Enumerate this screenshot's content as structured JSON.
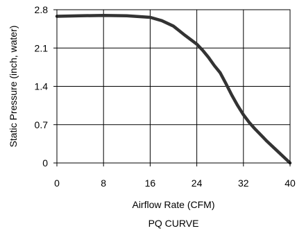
{
  "chart_data": {
    "type": "line",
    "title": "PQ CURVE",
    "xlabel": "Airflow Rate (CFM)",
    "ylabel": "Static Pressure (inch, water)",
    "xlim": [
      0,
      40
    ],
    "ylim": [
      0,
      2.8
    ],
    "x_ticks": [
      "0",
      "8",
      "16",
      "24",
      "32",
      "40"
    ],
    "y_ticks": [
      "0",
      "0.7",
      "1.4",
      "2.1",
      "2.8"
    ],
    "grid": true,
    "legend": "none",
    "series": [
      {
        "color": "#333333",
        "points": [
          [
            0,
            2.68
          ],
          [
            4,
            2.69
          ],
          [
            8,
            2.695
          ],
          [
            12,
            2.69
          ],
          [
            16,
            2.66
          ],
          [
            18,
            2.6
          ],
          [
            20,
            2.5
          ],
          [
            22,
            2.33
          ],
          [
            24,
            2.17
          ],
          [
            25,
            2.06
          ],
          [
            26,
            1.93
          ],
          [
            27,
            1.78
          ],
          [
            28,
            1.65
          ],
          [
            29,
            1.45
          ],
          [
            30,
            1.24
          ],
          [
            31,
            1.05
          ],
          [
            32,
            0.88
          ],
          [
            33,
            0.74
          ],
          [
            34,
            0.62
          ],
          [
            35,
            0.51
          ],
          [
            36,
            0.4
          ],
          [
            37,
            0.3
          ],
          [
            38,
            0.2
          ],
          [
            39,
            0.1
          ],
          [
            40,
            0.0
          ]
        ]
      }
    ]
  }
}
